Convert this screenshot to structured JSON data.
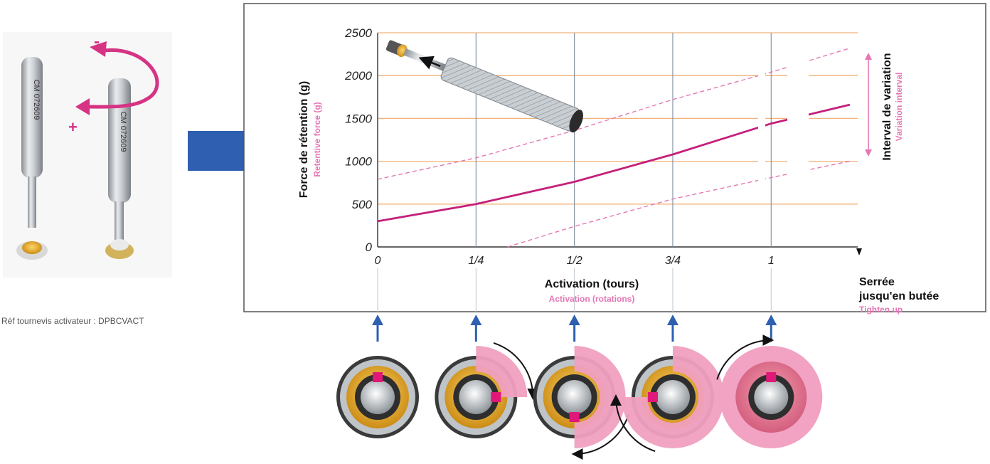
{
  "colors": {
    "brand_blue": "#2e5fb0",
    "accent_pink": "#c4207a",
    "light_pink": "#e477b4",
    "grid_orange": "#f2b27a",
    "grid_blue": "#b9c9da",
    "gold": "#e2a21f",
    "frame": "#555555"
  },
  "reference_label": "Réf tournevis activateur :  DPBCVACT",
  "product": {
    "engraving_left": "CM 072609",
    "engraving_right": "CM 072609",
    "minus_sign": "-",
    "plus_sign": "+"
  },
  "chart_data": {
    "type": "line",
    "x_ticks": [
      "0",
      "1/4",
      "1/2",
      "3/4",
      "1"
    ],
    "xlim": [
      0,
      1.22
    ],
    "ylim": [
      0,
      2500
    ],
    "y_ticks": [
      0,
      500,
      1000,
      1500,
      2000,
      2500
    ],
    "y_tick_labels": [
      "0",
      "500",
      "1000",
      "1500",
      "2000",
      "2500"
    ],
    "ylabel": "Force de rétention (g)",
    "ylabel_secondary": "Retentive force (g)",
    "xlabel": "Activation (tours)",
    "xlabel_secondary": "Activation (rotations)",
    "right_label": "Interval de variation",
    "right_label_secondary": "Variation interval",
    "end_label_line1": "Serrée",
    "end_label_line2": "jusqu'en butée",
    "end_label_secondary": "Tighten up",
    "grid": true,
    "series": [
      {
        "style": "solid",
        "x": [
          0,
          0.25,
          0.5,
          0.75,
          1,
          1.2
        ],
        "y": [
          300,
          500,
          760,
          1080,
          1440,
          1660
        ]
      },
      {
        "style": "dashed",
        "x": [
          0,
          0.25,
          0.5,
          0.75,
          1,
          1.2
        ],
        "y": [
          790,
          1040,
          1360,
          1720,
          2040,
          2320
        ]
      },
      {
        "style": "dashed",
        "x": [
          0.33,
          0.5,
          0.75,
          1,
          1.2
        ],
        "y": [
          0,
          240,
          560,
          810,
          1000
        ]
      }
    ]
  },
  "activation_steps": [
    {
      "fraction": 0
    },
    {
      "fraction": 0.25
    },
    {
      "fraction": 0.5
    },
    {
      "fraction": 0.75
    },
    {
      "fraction": 1
    }
  ]
}
